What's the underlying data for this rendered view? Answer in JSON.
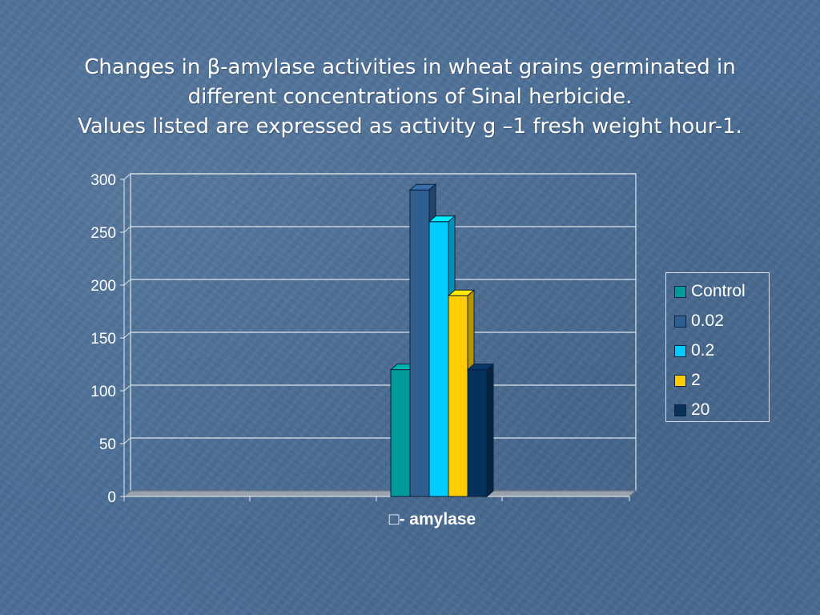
{
  "title_lines": [
    "Changes in β-amylase activities in wheat grains germinated in",
    "different concentrations of Sinal herbicide.",
    "Values listed are expressed as activity g –1 fresh weight hour-1."
  ],
  "chart_data": {
    "type": "bar",
    "categories": [
      "- amylase"
    ],
    "series": [
      {
        "name": "Control",
        "values": [
          120
        ],
        "color": "#009a9a"
      },
      {
        "name": "0.02",
        "values": [
          290
        ],
        "color": "#2f5e91"
      },
      {
        "name": "0.2",
        "values": [
          260
        ],
        "color": "#00ccff"
      },
      {
        "name": "2",
        "values": [
          190
        ],
        "color": "#ffcc00"
      },
      {
        "name": "20",
        "values": [
          120
        ],
        "color": "#06315c"
      }
    ],
    "xlabel": "- amylase",
    "xlabel_glyph": "□",
    "ylim": [
      0,
      300
    ],
    "yticks": [
      0,
      50,
      100,
      150,
      200,
      250,
      300
    ],
    "grid": true,
    "legend_position": "right",
    "style": "3d-column"
  }
}
